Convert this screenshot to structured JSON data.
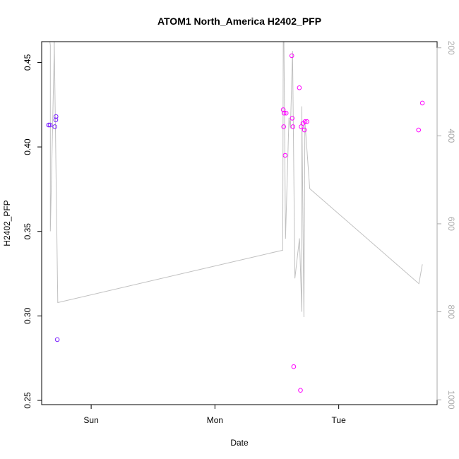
{
  "chart_data": {
    "type": "scatter",
    "title": "ATOM1 North_America H2402_PFP",
    "xlabel": "Date",
    "ylabel": "H2402_PFP",
    "x_ticks": [
      {
        "label": "Sun",
        "value": 1.0
      },
      {
        "label": "Mon",
        "value": 2.0
      },
      {
        "label": "Tue",
        "value": 3.0
      }
    ],
    "xlim": [
      0.6,
      3.795
    ],
    "y_left": {
      "lim": [
        0.2475,
        0.4623
      ],
      "ticks": [
        0.25,
        0.3,
        0.35,
        0.4,
        0.45
      ],
      "tick_labels": [
        "0.25",
        "0.30",
        "0.35",
        "0.40",
        "0.45"
      ]
    },
    "y_right": {
      "lim": [
        1011,
        186
      ],
      "ticks": [
        200,
        400,
        600,
        800,
        1000
      ],
      "tick_labels": [
        "200",
        "400",
        "600",
        "800",
        "1000"
      ],
      "color": "#aaaaaa"
    },
    "colors": {
      "line": "#c0c0c0",
      "axis": "#000000",
      "right_axis": "#aaaaaa",
      "point_low": "#7a1fff",
      "point_high": "#ff00ff"
    },
    "series": [
      {
        "kind": "points",
        "marker": "circle-open",
        "points": [
          {
            "x": 0.656,
            "y": 0.413,
            "color": "#7a1fff"
          },
          {
            "x": 0.668,
            "y": 0.413,
            "color": "#7a1fff"
          },
          {
            "x": 0.706,
            "y": 0.412,
            "color": "#7a1fff"
          },
          {
            "x": 0.714,
            "y": 0.416,
            "color": "#7a1fff"
          },
          {
            "x": 0.716,
            "y": 0.418,
            "color": "#7a1fff"
          },
          {
            "x": 0.726,
            "y": 0.286,
            "color": "#7a1fff"
          },
          {
            "x": 2.552,
            "y": 0.422,
            "color": "#ff00ff"
          },
          {
            "x": 2.555,
            "y": 0.412,
            "color": "#ff00ff"
          },
          {
            "x": 2.558,
            "y": 0.42,
            "color": "#ff00ff"
          },
          {
            "x": 2.567,
            "y": 0.395,
            "color": "#ff00ff"
          },
          {
            "x": 2.575,
            "y": 0.42,
            "color": "#ff00ff"
          },
          {
            "x": 2.621,
            "y": 0.454,
            "color": "#ff00ff"
          },
          {
            "x": 2.624,
            "y": 0.417,
            "color": "#ff00ff"
          },
          {
            "x": 2.63,
            "y": 0.412,
            "color": "#ff00ff"
          },
          {
            "x": 2.636,
            "y": 0.27,
            "color": "#ff00ff"
          },
          {
            "x": 2.682,
            "y": 0.435,
            "color": "#ff00ff"
          },
          {
            "x": 2.691,
            "y": 0.256,
            "color": "#ff00ff"
          },
          {
            "x": 2.697,
            "y": 0.412,
            "color": "#ff00ff"
          },
          {
            "x": 2.711,
            "y": 0.414,
            "color": "#ff00ff"
          },
          {
            "x": 2.723,
            "y": 0.41,
            "color": "#ff00ff"
          },
          {
            "x": 2.728,
            "y": 0.415,
            "color": "#ff00ff"
          },
          {
            "x": 2.743,
            "y": 0.415,
            "color": "#ff00ff"
          },
          {
            "x": 3.645,
            "y": 0.41,
            "color": "#ff00ff"
          },
          {
            "x": 3.676,
            "y": 0.426,
            "color": "#ff00ff"
          }
        ]
      },
      {
        "kind": "line",
        "axis": "right",
        "color": "#c0c0c0",
        "points": [
          {
            "x": 0.656,
            "y": 165
          },
          {
            "x": 0.67,
            "y": 194
          },
          {
            "x": 0.67,
            "y": 617
          },
          {
            "x": 0.701,
            "y": 212
          },
          {
            "x": 0.701,
            "y": 165
          },
          {
            "x": 0.73,
            "y": 779
          },
          {
            "x": 2.548,
            "y": 660
          },
          {
            "x": 2.552,
            "y": 194
          },
          {
            "x": 2.555,
            "y": 111
          },
          {
            "x": 2.57,
            "y": 634
          },
          {
            "x": 2.598,
            "y": 359
          },
          {
            "x": 2.61,
            "y": 383
          },
          {
            "x": 2.627,
            "y": 207
          },
          {
            "x": 2.646,
            "y": 724
          },
          {
            "x": 2.683,
            "y": 633
          },
          {
            "x": 2.702,
            "y": 800
          },
          {
            "x": 2.702,
            "y": 333
          },
          {
            "x": 2.719,
            "y": 812
          },
          {
            "x": 2.727,
            "y": 367
          },
          {
            "x": 2.766,
            "y": 520
          },
          {
            "x": 3.648,
            "y": 736
          },
          {
            "x": 3.676,
            "y": 692
          }
        ]
      }
    ]
  }
}
